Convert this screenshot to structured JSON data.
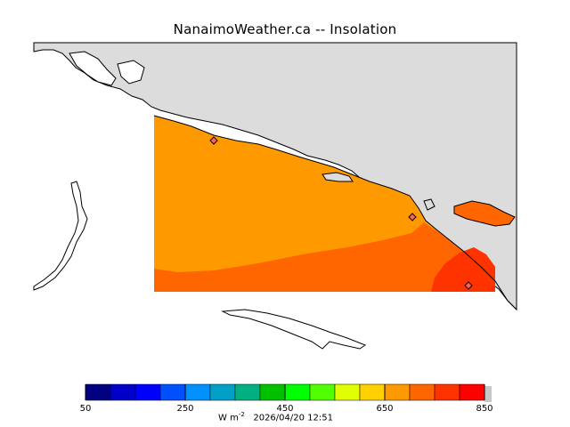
{
  "header": {
    "title": "NanaimoWeather.ca -- Insolation"
  },
  "map": {
    "land_color": "#dcdcdc",
    "water_color": "#ffffff",
    "coast_color": "#000000",
    "field_bands": [
      {
        "name": "650-700",
        "color": "#ff9900"
      },
      {
        "name": "700-750",
        "color": "#ff6600"
      },
      {
        "name": "750-800",
        "color": "#ff3300"
      }
    ],
    "station_markers": 3
  },
  "colorbar": {
    "colors": [
      "#000080",
      "#0000c8",
      "#0000ff",
      "#0050ff",
      "#0090ff",
      "#00a0c8",
      "#00b080",
      "#00c000",
      "#00ff00",
      "#50ff00",
      "#e0ff00",
      "#ffd000",
      "#ff9900",
      "#ff6600",
      "#ff3300",
      "#ff0000"
    ],
    "tick_labels": [
      "50",
      "250",
      "450",
      "650",
      "850"
    ],
    "units_base": "W m",
    "units_exponent": "-2",
    "timestamp": "2026/04/20 12:51"
  }
}
